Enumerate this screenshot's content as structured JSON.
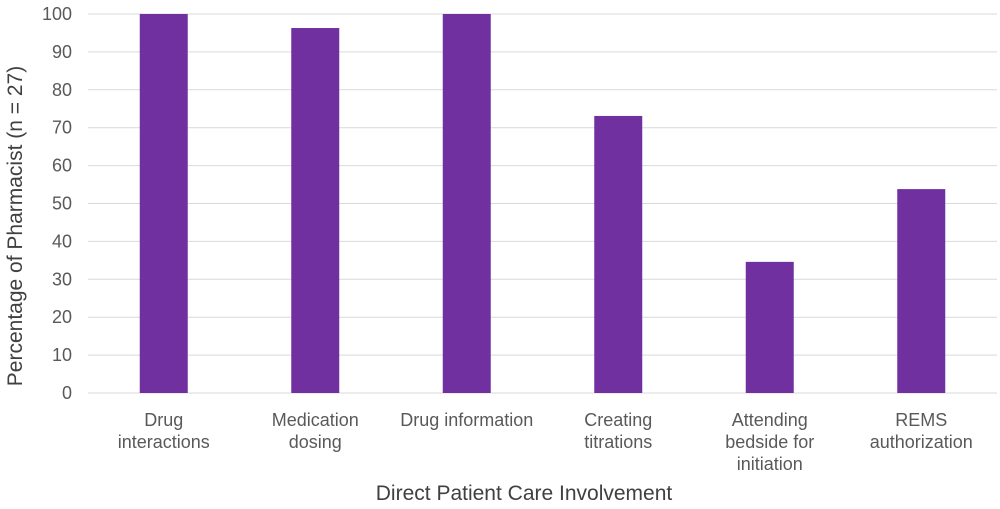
{
  "chart_data": {
    "type": "bar",
    "categories": [
      [
        "Drug",
        "interactions"
      ],
      [
        "Medication",
        "dosing"
      ],
      [
        "Drug information"
      ],
      [
        "Creating",
        "titrations"
      ],
      [
        "Attending",
        "bedside for",
        "initiation"
      ],
      [
        "REMS",
        "authorization"
      ]
    ],
    "values": [
      100,
      96.3,
      100,
      73.1,
      34.6,
      53.8
    ],
    "xlabel": "Direct Patient Care Involvement",
    "ylabel": "Percentage of Pharmacist (n = 27)",
    "ylim": [
      0,
      100
    ],
    "yticks": [
      0,
      10,
      20,
      30,
      40,
      50,
      60,
      70,
      80,
      90,
      100
    ],
    "grid": true,
    "bar_color": "#7030A0",
    "grid_color": "#D9D9D9"
  }
}
